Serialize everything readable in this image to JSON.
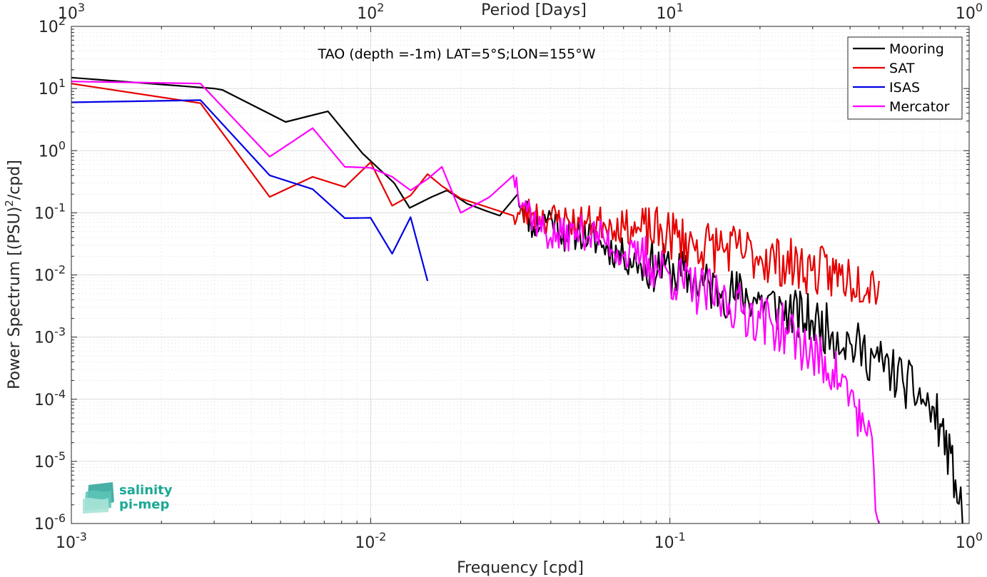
{
  "chart_data": {
    "type": "line",
    "title": "TAO (depth =-1m) LAT=5°S;LON=155°W",
    "xlabel": "Frequency [cpd]",
    "ylabel": "Power Spectrum [(PSU)",
    "ylabel_sup": "2",
    "ylabel_tail": "/cpd]",
    "x2label": "Period [Days]",
    "xscale": "log",
    "yscale": "log",
    "xlim": [
      0.001,
      1
    ],
    "ylim": [
      1e-06,
      100
    ],
    "grid": true,
    "legend_position": "top-right",
    "x_ticks": [
      0.001,
      0.01,
      0.1,
      1
    ],
    "x_tick_labels": [
      {
        "base": "10",
        "exp": "-3"
      },
      {
        "base": "10",
        "exp": "-2"
      },
      {
        "base": "10",
        "exp": "-1"
      },
      {
        "base": "10",
        "exp": "0"
      }
    ],
    "y_ticks": [
      1e-06,
      1e-05,
      0.0001,
      0.001,
      0.01,
      0.1,
      1,
      10,
      100
    ],
    "y_tick_labels": [
      {
        "base": "10",
        "exp": "-6"
      },
      {
        "base": "10",
        "exp": "-5"
      },
      {
        "base": "10",
        "exp": "-4"
      },
      {
        "base": "10",
        "exp": "-3"
      },
      {
        "base": "10",
        "exp": "-2"
      },
      {
        "base": "10",
        "exp": "-1"
      },
      {
        "base": "10",
        "exp": "0"
      },
      {
        "base": "10",
        "exp": "1"
      },
      {
        "base": "10",
        "exp": "2"
      }
    ],
    "x2_ticks": [
      1000,
      100,
      10,
      1
    ],
    "x2_tick_labels": [
      {
        "base": "10",
        "exp": "3"
      },
      {
        "base": "10",
        "exp": "2"
      },
      {
        "base": "10",
        "exp": "1"
      },
      {
        "base": "10",
        "exp": "0"
      }
    ],
    "series": [
      {
        "name": "Mooring",
        "color": "#000000",
        "noise_seed": 11,
        "x": [
          0.001,
          0.003,
          0.0032,
          0.0052,
          0.0072,
          0.0094,
          0.012,
          0.0135,
          0.016,
          0.018,
          0.021,
          0.024,
          0.027,
          0.031,
          0.035,
          0.04,
          0.045,
          0.05,
          0.06,
          0.07,
          0.08,
          0.1,
          0.12,
          0.15,
          0.2,
          0.25,
          0.3,
          0.35,
          0.4,
          0.5,
          0.6,
          0.7,
          0.8,
          0.9,
          0.95
        ],
        "y": [
          15,
          10,
          9.5,
          2.9,
          4.3,
          0.9,
          0.3,
          0.12,
          0.18,
          0.23,
          0.14,
          0.11,
          0.09,
          0.2,
          0.06,
          0.09,
          0.04,
          0.05,
          0.03,
          0.02,
          0.015,
          0.012,
          0.008,
          0.0055,
          0.004,
          0.0025,
          0.0018,
          0.0012,
          0.0008,
          0.0004,
          0.0002,
          0.0001,
          4e-05,
          5e-06,
          1e-06
        ]
      },
      {
        "name": "SAT",
        "color": "#e60000",
        "noise_seed": 23,
        "x": [
          0.001,
          0.0027,
          0.0046,
          0.0064,
          0.0082,
          0.01,
          0.0118,
          0.0136,
          0.0155,
          0.0173,
          0.02,
          0.025,
          0.03,
          0.035,
          0.04,
          0.05,
          0.06,
          0.07,
          0.08,
          0.1,
          0.12,
          0.15,
          0.2,
          0.3,
          0.4,
          0.5
        ],
        "y": [
          12,
          5.8,
          0.18,
          0.38,
          0.26,
          0.65,
          0.13,
          0.19,
          0.42,
          0.27,
          0.17,
          0.12,
          0.09,
          0.1,
          0.08,
          0.07,
          0.07,
          0.06,
          0.05,
          0.045,
          0.03,
          0.028,
          0.02,
          0.012,
          0.009,
          0.008
        ]
      },
      {
        "name": "ISAS",
        "color": "#0000e6",
        "noise_seed": 0,
        "x": [
          0.001,
          0.0027,
          0.0046,
          0.0064,
          0.0082,
          0.01,
          0.0118,
          0.0136,
          0.0155
        ],
        "y": [
          6,
          6.5,
          0.4,
          0.24,
          0.082,
          0.083,
          0.022,
          0.085,
          0.008
        ]
      },
      {
        "name": "Mercator",
        "color": "#ff00ff",
        "noise_seed": 37,
        "x": [
          0.001,
          0.0027,
          0.0046,
          0.0064,
          0.0082,
          0.01,
          0.0118,
          0.0136,
          0.0155,
          0.0173,
          0.02,
          0.025,
          0.03,
          0.035,
          0.04,
          0.05,
          0.06,
          0.07,
          0.08,
          0.1,
          0.12,
          0.15,
          0.2,
          0.25,
          0.3,
          0.35,
          0.4,
          0.45,
          0.48,
          0.5
        ],
        "y": [
          13,
          12,
          0.8,
          2.3,
          0.55,
          0.53,
          0.38,
          0.23,
          0.35,
          0.55,
          0.1,
          0.18,
          0.4,
          0.08,
          0.04,
          0.05,
          0.04,
          0.02,
          0.02,
          0.01,
          0.006,
          0.004,
          0.002,
          0.0012,
          0.0005,
          0.0003,
          0.00012,
          3e-05,
          8e-06,
          1e-06
        ]
      }
    ]
  },
  "logo": {
    "line1": "salinity",
    "line2": "pi-mep"
  }
}
